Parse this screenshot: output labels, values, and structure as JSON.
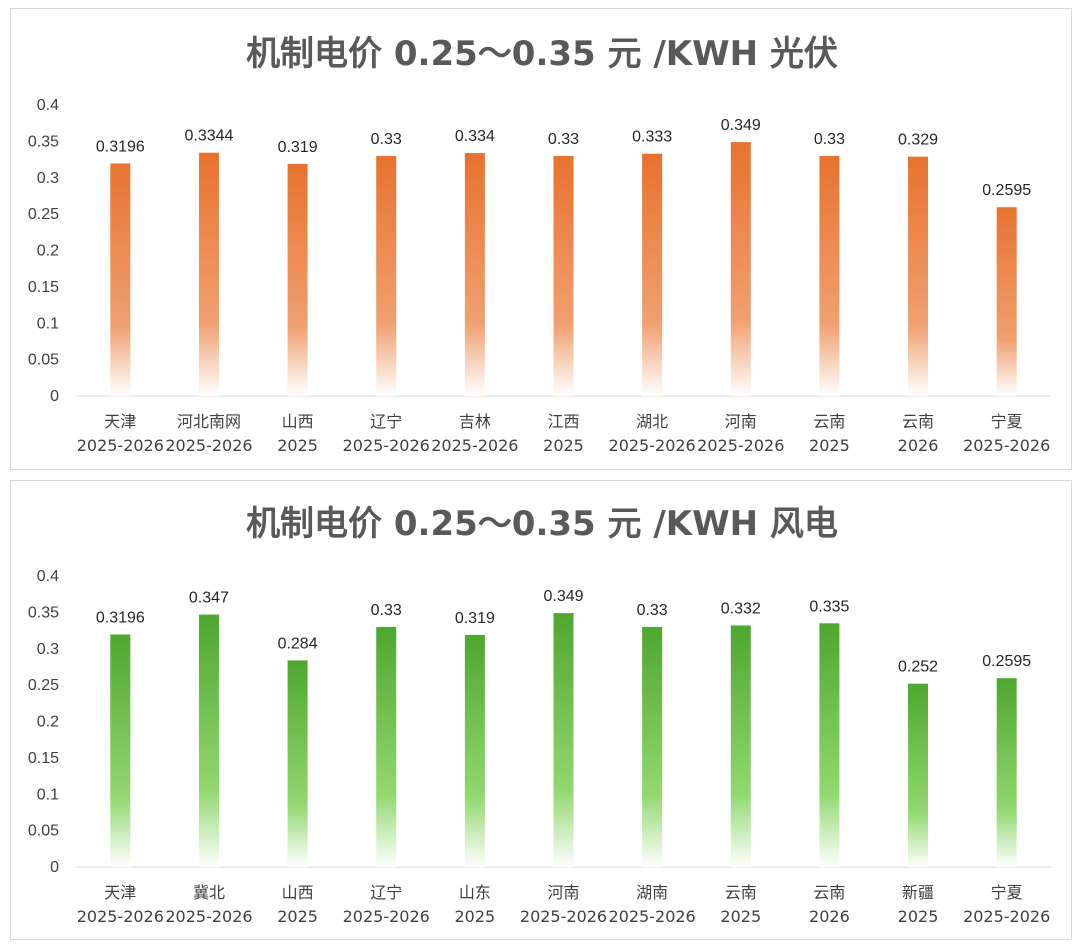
{
  "chart_data": [
    {
      "type": "bar",
      "title": "机制电价 0.25～0.35 元 /KWH 光伏",
      "categories": [
        [
          "天津",
          "2025-2026"
        ],
        [
          "河北南网",
          "2025-2026"
        ],
        [
          "山西",
          "2025"
        ],
        [
          "辽宁",
          "2025-2026"
        ],
        [
          "吉林",
          "2025-2026"
        ],
        [
          "江西",
          "2025"
        ],
        [
          "湖北",
          "2025-2026"
        ],
        [
          "河南",
          "2025-2026"
        ],
        [
          "云南",
          "2025"
        ],
        [
          "云南",
          "2026"
        ],
        [
          "宁夏",
          "2025-2026"
        ]
      ],
      "values": [
        0.3196,
        0.3344,
        0.319,
        0.33,
        0.334,
        0.33,
        0.333,
        0.349,
        0.33,
        0.329,
        0.2595
      ],
      "value_labels": [
        "0.3196",
        "0.3344",
        "0.319",
        "0.33",
        "0.334",
        "0.33",
        "0.333",
        "0.349",
        "0.33",
        "0.329",
        "0.2595"
      ],
      "yticks": [
        "0",
        "0.05",
        "0.1",
        "0.15",
        "0.2",
        "0.25",
        "0.3",
        "0.35",
        "0.4"
      ],
      "ylim": [
        0,
        0.4
      ],
      "xlabel": "",
      "ylabel": "",
      "grid": false,
      "color": "#E8722F"
    },
    {
      "type": "bar",
      "title": "机制电价 0.25～0.35 元 /KWH 风电",
      "categories": [
        [
          "天津",
          "2025-2026"
        ],
        [
          "冀北",
          "2025-2026"
        ],
        [
          "山西",
          "2025"
        ],
        [
          "辽宁",
          "2025-2026"
        ],
        [
          "山东",
          "2025"
        ],
        [
          "河南",
          "2025-2026"
        ],
        [
          "湖南",
          "2025-2026"
        ],
        [
          "云南",
          "2025"
        ],
        [
          "云南",
          "2026"
        ],
        [
          "新疆",
          "2025"
        ],
        [
          "宁夏",
          "2025-2026"
        ]
      ],
      "values": [
        0.3196,
        0.347,
        0.284,
        0.33,
        0.319,
        0.349,
        0.33,
        0.332,
        0.335,
        0.252,
        0.2595
      ],
      "value_labels": [
        "0.3196",
        "0.347",
        "0.284",
        "0.33",
        "0.319",
        "0.349",
        "0.33",
        "0.332",
        "0.335",
        "0.252",
        "0.2595"
      ],
      "yticks": [
        "0",
        "0.05",
        "0.1",
        "0.15",
        "0.2",
        "0.25",
        "0.3",
        "0.35",
        "0.4"
      ],
      "ylim": [
        0,
        0.4
      ],
      "xlabel": "",
      "ylabel": "",
      "grid": false,
      "color": "#4EA72E"
    }
  ]
}
